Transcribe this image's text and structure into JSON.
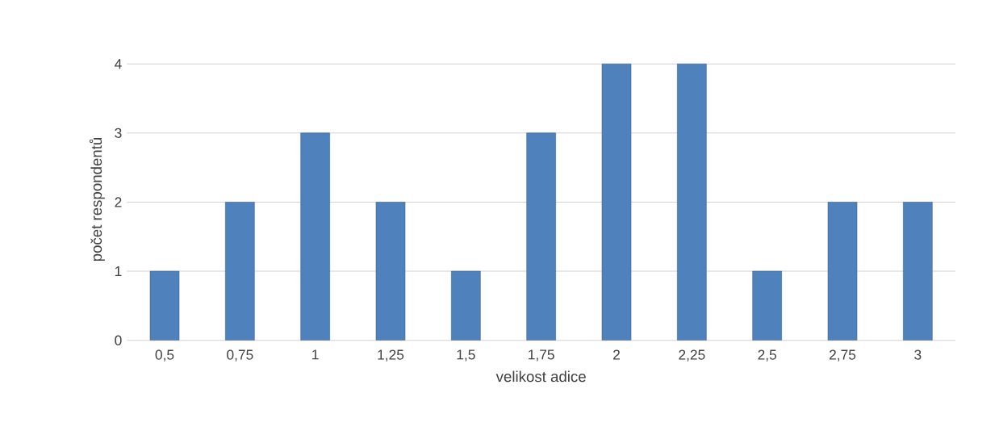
{
  "chart_data": {
    "type": "bar",
    "xlabel": "velikost adice",
    "ylabel": "počet respondentů",
    "categories": [
      "0,5",
      "0,75",
      "1",
      "1,25",
      "1,5",
      "1,75",
      "2",
      "2,25",
      "2,5",
      "2,75",
      "3"
    ],
    "values": [
      1,
      2,
      3,
      2,
      1,
      3,
      4,
      4,
      1,
      2,
      2
    ],
    "color": "#4f81bd",
    "ylim": [
      0,
      4
    ],
    "yticks": [
      0,
      1,
      2,
      3,
      4
    ],
    "grid": "y"
  }
}
